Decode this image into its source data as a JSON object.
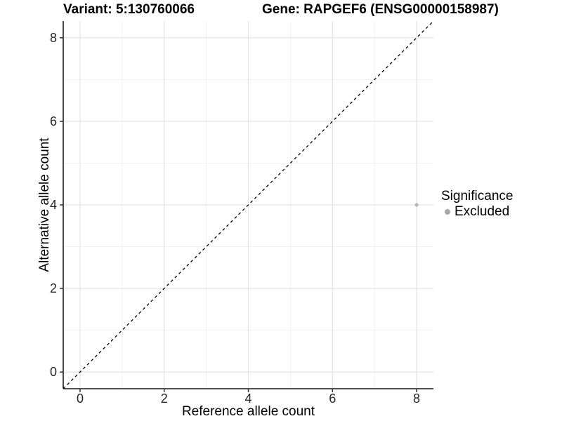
{
  "header": {
    "variant_title": "Variant: 5:130760066",
    "gene_title": "Gene: RAPGEF6 (ENSG00000158987)"
  },
  "chart_data": {
    "type": "scatter",
    "xlabel": "Reference allele count",
    "ylabel": "Alternative allele count",
    "xlim": [
      -0.4,
      8.4
    ],
    "ylim": [
      -0.4,
      8.4
    ],
    "xticks": [
      0,
      2,
      4,
      6,
      8
    ],
    "yticks": [
      0,
      2,
      4,
      6,
      8
    ],
    "xticks_minor": [
      1,
      3,
      5,
      7
    ],
    "yticks_minor": [
      1,
      3,
      5,
      7
    ],
    "grid": true,
    "points": [
      {
        "x": 8,
        "y": 4,
        "significance": "Excluded"
      }
    ],
    "reference_line": {
      "kind": "identity",
      "style": "dashed",
      "x1": -0.4,
      "y1": -0.4,
      "x2": 8.4,
      "y2": 8.4
    },
    "legend": {
      "title": "Significance",
      "position": "right",
      "items": [
        {
          "label": "Excluded",
          "color": "#a9a9a9"
        }
      ]
    },
    "colors": {
      "point": "#b7b7b7",
      "grid_major": "#e3e3e3",
      "grid_minor": "#f1f1f1",
      "axis_line": "#1a1a1a",
      "tick": "#333333",
      "tick_label": "#262626",
      "dashed_line": "#000000",
      "background": "#ffffff"
    }
  }
}
